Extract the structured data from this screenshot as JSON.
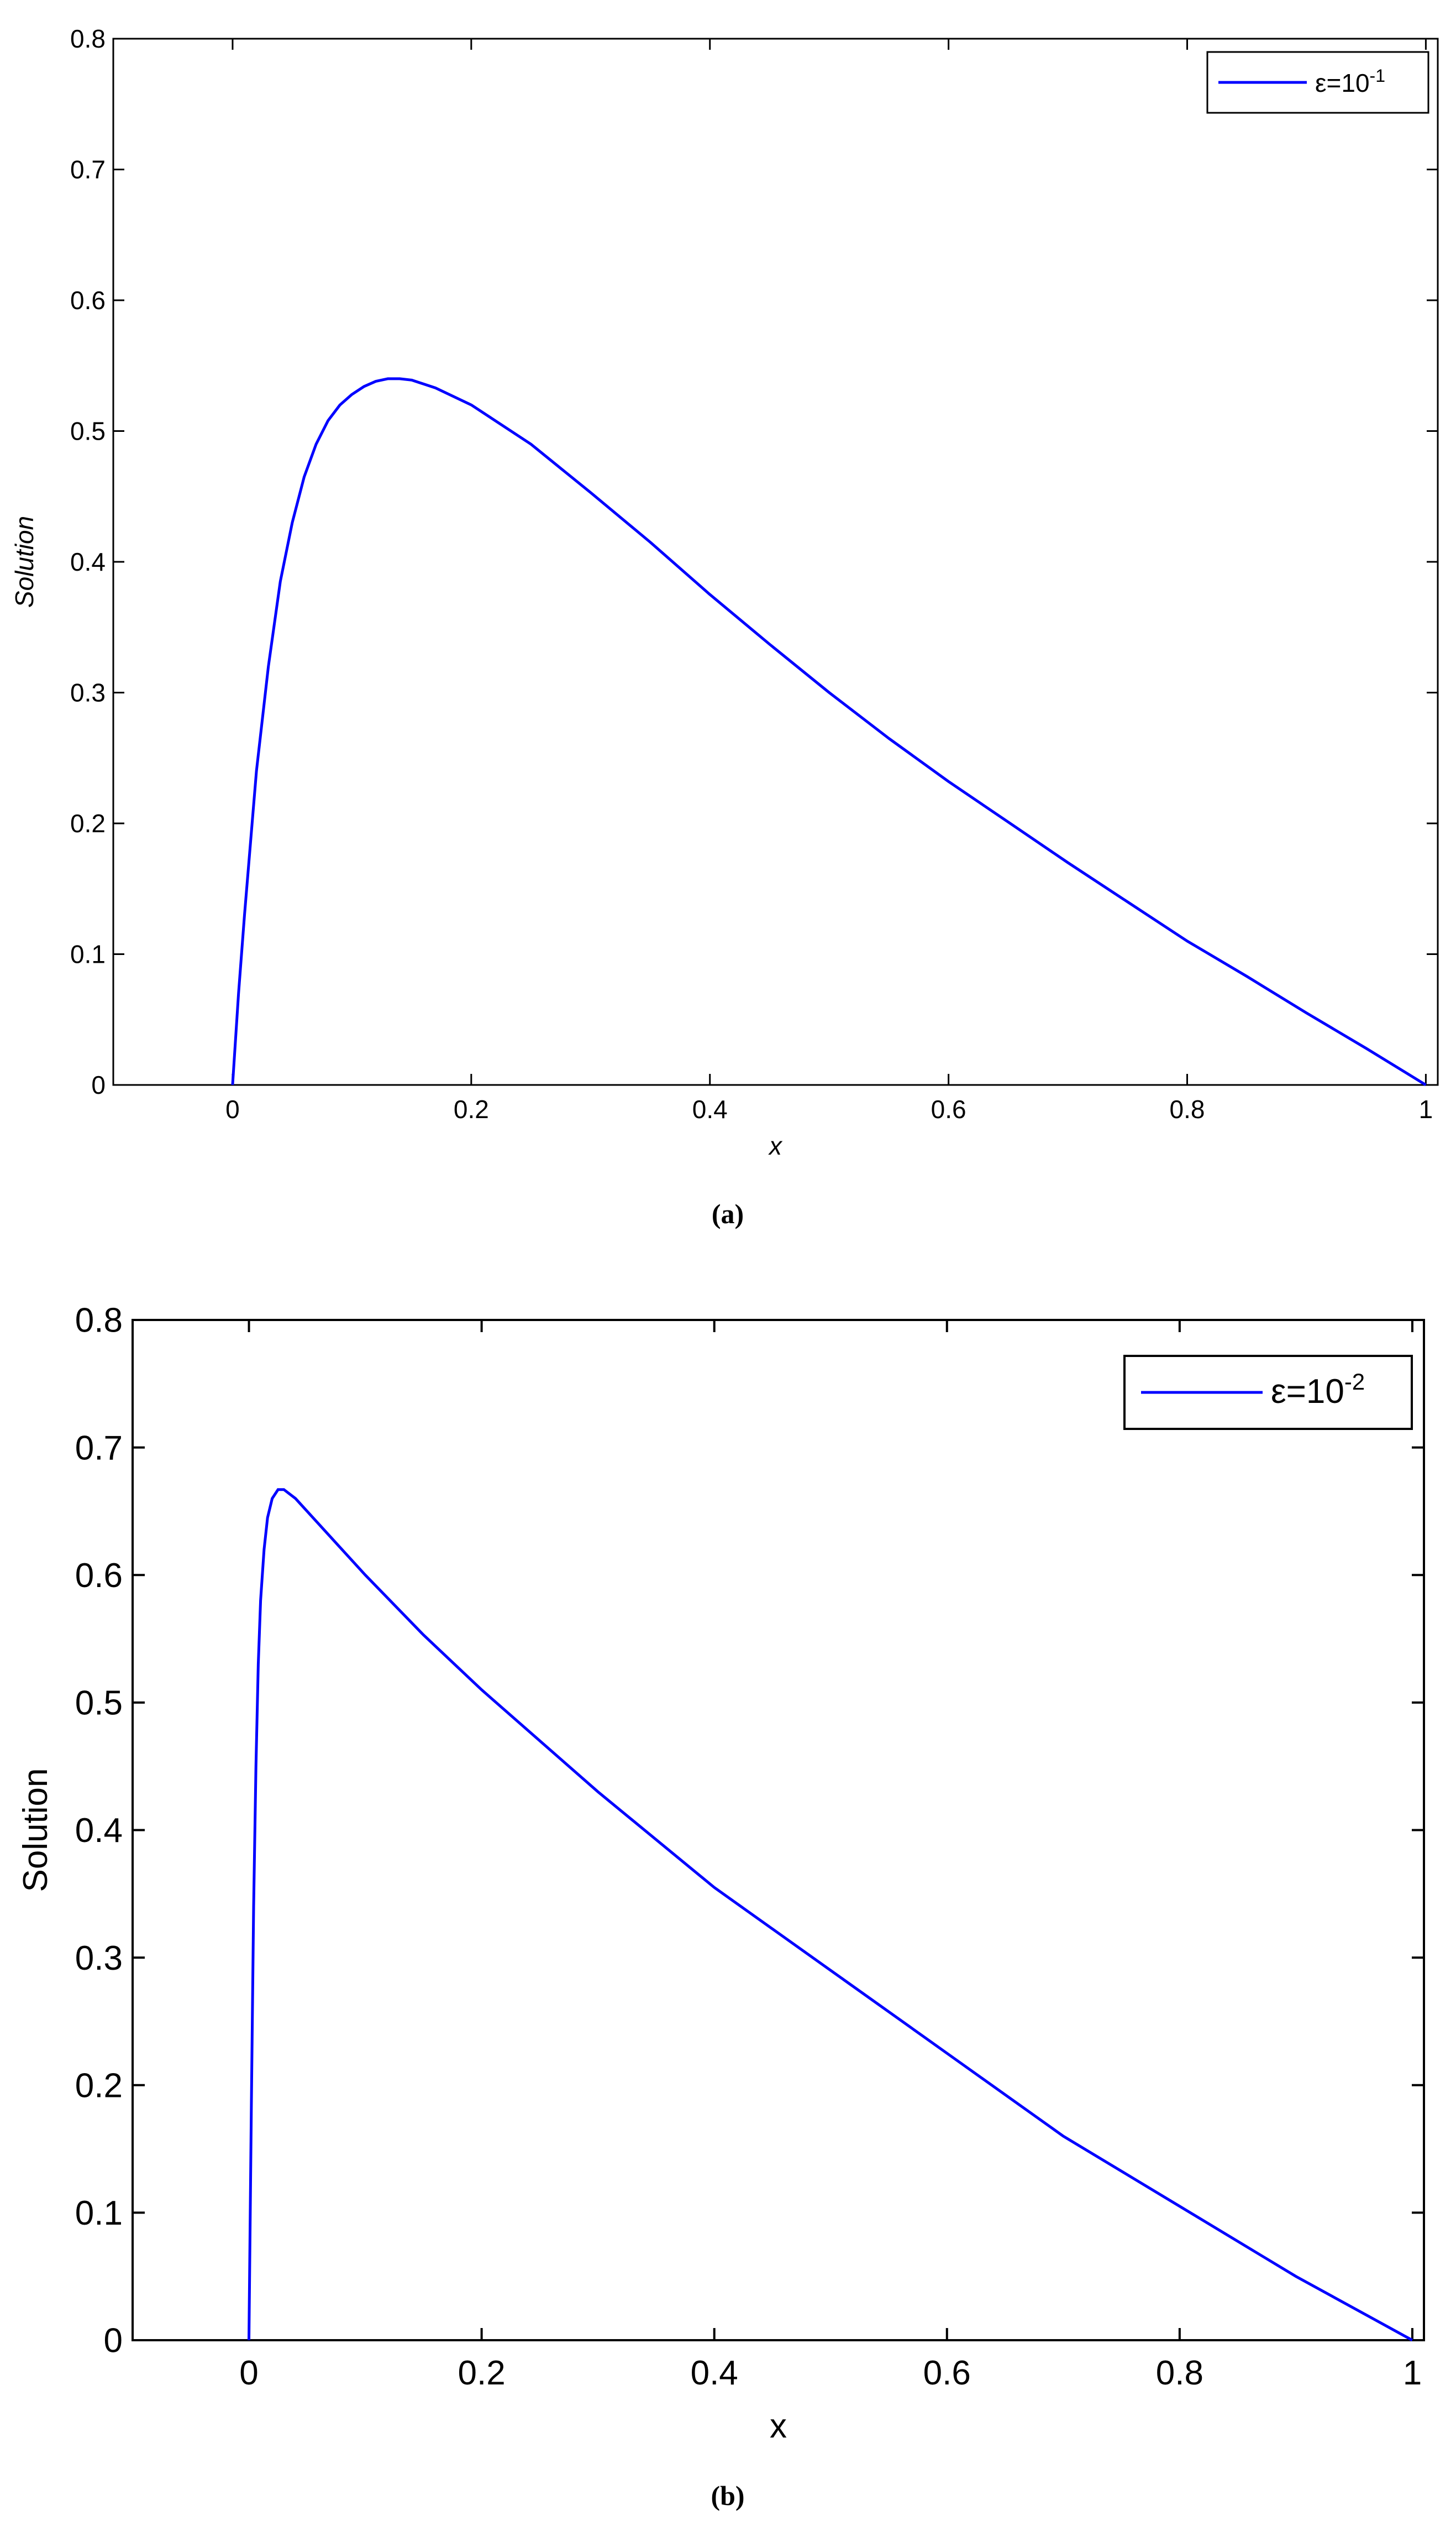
{
  "chart_data": [
    {
      "type": "line",
      "caption": "(a)",
      "xlabel": "x",
      "ylabel": "Solution",
      "xlim": [
        -0.1,
        1.01
      ],
      "ylim": [
        0,
        0.8
      ],
      "xticks": [
        0,
        0.2,
        0.4,
        0.6,
        0.8,
        1
      ],
      "xtick_labels": [
        "0",
        "0.2",
        "0.4",
        "0.6",
        "0.8",
        "1"
      ],
      "yticks": [
        0,
        0.1,
        0.2,
        0.3,
        0.4,
        0.5,
        0.6,
        0.7,
        0.8
      ],
      "ytick_labels": [
        "0",
        "0.1",
        "0.2",
        "0.3",
        "0.4",
        "0.5",
        "0.6",
        "0.7",
        "0.8"
      ],
      "grid": false,
      "legend_position": "top-right",
      "line_color": "#0000ff",
      "series": [
        {
          "name_base": "ε=10",
          "name_exp": "-1",
          "x": [
            0,
            0.005,
            0.01,
            0.02,
            0.03,
            0.04,
            0.05,
            0.06,
            0.07,
            0.08,
            0.09,
            0.1,
            0.11,
            0.12,
            0.13,
            0.14,
            0.15,
            0.17,
            0.2,
            0.25,
            0.3,
            0.35,
            0.4,
            0.45,
            0.5,
            0.55,
            0.6,
            0.65,
            0.7,
            0.75,
            0.8,
            0.85,
            0.9,
            0.95,
            1.0
          ],
          "values": [
            0,
            0.07,
            0.13,
            0.24,
            0.32,
            0.385,
            0.43,
            0.465,
            0.49,
            0.508,
            0.52,
            0.528,
            0.534,
            0.538,
            0.54,
            0.54,
            0.539,
            0.533,
            0.52,
            0.49,
            0.453,
            0.415,
            0.375,
            0.337,
            0.3,
            0.265,
            0.232,
            0.201,
            0.17,
            0.14,
            0.11,
            0.083,
            0.055,
            0.028,
            0
          ]
        }
      ]
    },
    {
      "type": "line",
      "caption": "(b)",
      "xlabel": "x",
      "ylabel": "Solution",
      "xlim": [
        -0.1,
        1.01
      ],
      "ylim": [
        0,
        0.8
      ],
      "xticks": [
        0,
        0.2,
        0.4,
        0.6,
        0.8,
        1
      ],
      "xtick_labels": [
        "0",
        "0.2",
        "0.4",
        "0.6",
        "0.8",
        "1"
      ],
      "yticks": [
        0,
        0.1,
        0.2,
        0.3,
        0.4,
        0.5,
        0.6,
        0.7,
        0.8
      ],
      "ytick_labels": [
        "0",
        "0.1",
        "0.2",
        "0.3",
        "0.4",
        "0.5",
        "0.6",
        "0.7",
        "0.8"
      ],
      "grid": false,
      "legend_position": "top-right",
      "line_color": "#0000ff",
      "series": [
        {
          "name_base": "ε=10",
          "name_exp": "-2",
          "x": [
            0,
            0.002,
            0.004,
            0.006,
            0.008,
            0.01,
            0.013,
            0.016,
            0.02,
            0.025,
            0.03,
            0.04,
            0.05,
            0.07,
            0.1,
            0.15,
            0.2,
            0.3,
            0.4,
            0.5,
            0.6,
            0.7,
            0.8,
            0.9,
            1.0
          ],
          "values": [
            0,
            0.18,
            0.34,
            0.45,
            0.53,
            0.58,
            0.62,
            0.645,
            0.66,
            0.667,
            0.667,
            0.66,
            0.65,
            0.63,
            0.6,
            0.553,
            0.51,
            0.43,
            0.355,
            0.29,
            0.225,
            0.16,
            0.105,
            0.05,
            0
          ]
        }
      ]
    }
  ]
}
